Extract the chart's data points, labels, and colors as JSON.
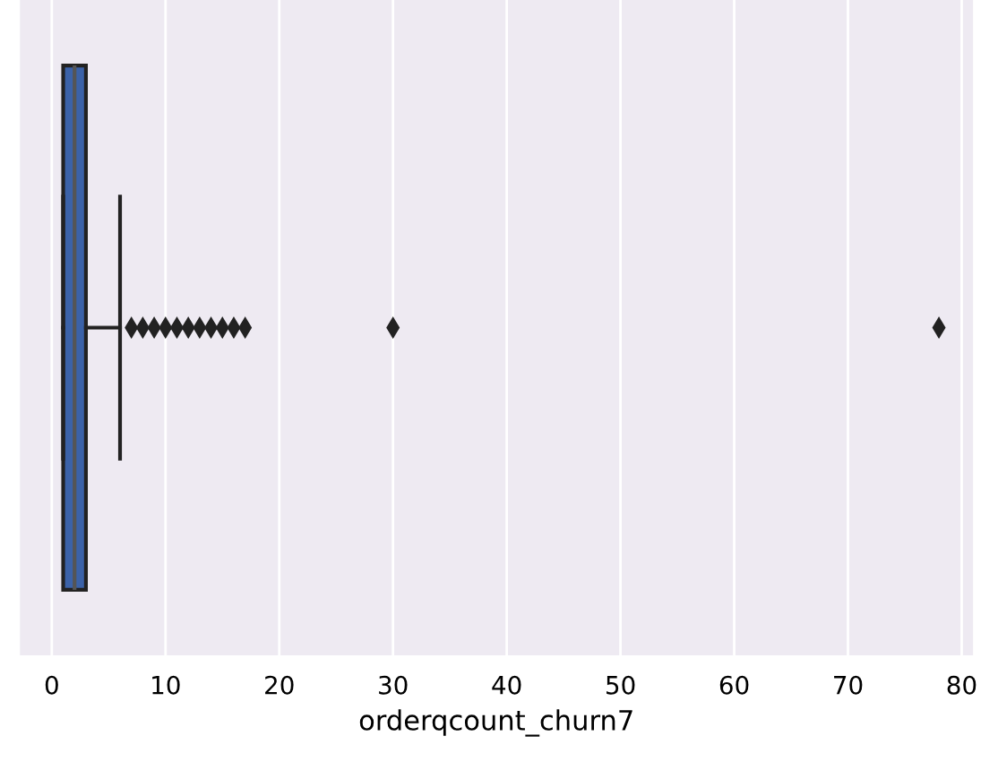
{
  "chart_data": {
    "type": "box",
    "orientation": "horizontal",
    "categories": [
      null
    ],
    "xlabel": "orderqcount_churn7",
    "series": [
      {
        "color": "#3b62a8",
        "boxes": [
          {
            "low": 1,
            "q1": 1,
            "median": 2,
            "q3": 3,
            "high": 6,
            "outliers": [
              7,
              8,
              9,
              10,
              11,
              12,
              13,
              14,
              15,
              16,
              17,
              30,
              78
            ]
          }
        ]
      }
    ],
    "xlim": [
      -2.8,
      81
    ],
    "xticks": [
      0,
      10,
      20,
      30,
      40,
      50,
      60,
      70,
      80
    ],
    "grid": "x",
    "legend": false
  }
}
